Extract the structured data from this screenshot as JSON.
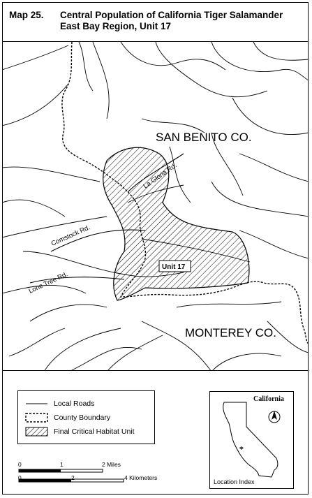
{
  "header": {
    "map_number": "Map 25.",
    "title_line1": "Central Population of California Tiger Salamander",
    "title_line2": "East Bay Region, Unit 17"
  },
  "map": {
    "county_north": "SAN BENITO CO.",
    "county_south": "MONTEREY CO.",
    "unit_label": "Unit 17",
    "roads": {
      "la_gloria": "La Gloria Rd.",
      "comstock": "Comstock Rd.",
      "lone_tree": "Lone Tree Rd."
    }
  },
  "legend": {
    "local_roads": "Local Roads",
    "county_boundary": "County Boundary",
    "habitat_unit": "Final Critical Habitat Unit"
  },
  "inset": {
    "title": "California",
    "caption": "Location Index",
    "north_arrow": "north-arrow-icon"
  },
  "scale_bar": {
    "miles": {
      "t0": "0",
      "t1": "1",
      "t2": "2 Miles"
    },
    "km": {
      "t0": "0",
      "t1": "2",
      "t2": "4 Kilometers"
    }
  }
}
